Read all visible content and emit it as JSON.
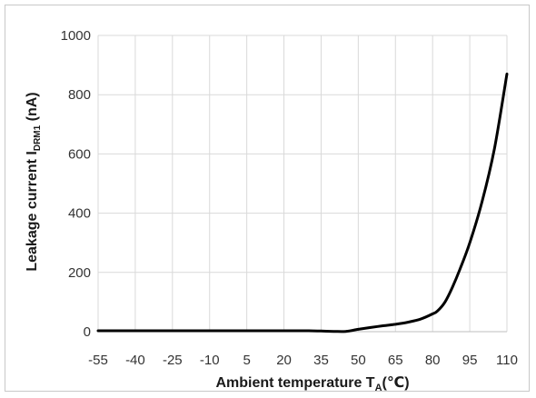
{
  "chart_data": {
    "type": "line",
    "title": "",
    "xlabel": {
      "main": "Ambient temperature T",
      "sub": "A",
      "unit": "(℃)"
    },
    "ylabel": {
      "main": "Leakage current I",
      "sub": "DRM1",
      "unit": " (nA)"
    },
    "x_ticks": [
      "-55",
      "-40",
      "-25",
      "-10",
      "5",
      "20",
      "35",
      "50",
      "65",
      "80",
      "95",
      "110"
    ],
    "y_ticks": [
      0,
      200,
      400,
      600,
      800,
      1000
    ],
    "xlim": [
      -55,
      110
    ],
    "ylim": [
      0,
      1000
    ],
    "grid": true,
    "series": [
      {
        "color": "#000000",
        "x": [
          -55,
          -40,
          -25,
          -10,
          5,
          20,
          30,
          35,
          40,
          45,
          50,
          55,
          60,
          65,
          70,
          75,
          80,
          82,
          85,
          88,
          91,
          95,
          100,
          105,
          110
        ],
        "y": [
          3,
          3,
          3,
          3,
          3,
          3,
          3,
          2,
          1,
          1,
          8,
          14,
          20,
          25,
          32,
          42,
          60,
          70,
          100,
          150,
          210,
          300,
          440,
          620,
          870
        ]
      }
    ]
  }
}
